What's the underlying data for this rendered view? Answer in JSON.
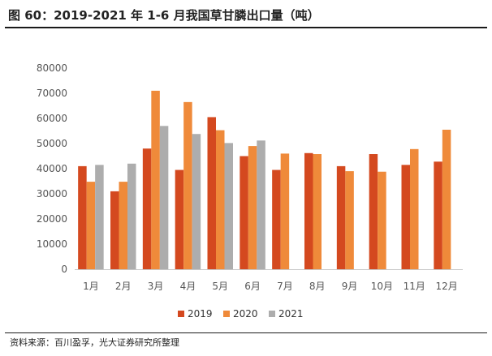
{
  "header": {
    "title": "图 60：2019-2021 年 1-6 月我国草甘膦出口量（吨）"
  },
  "footer": {
    "source": "资料来源：百川盈孚，光大证券研究所整理"
  },
  "chart_data": {
    "type": "bar",
    "title": "图 60：2019-2021 年 1-6 月我国草甘膦出口量（吨）",
    "xlabel": "",
    "ylabel": "",
    "ylim": [
      0,
      80000
    ],
    "yticks": [
      0,
      10000,
      20000,
      30000,
      40000,
      50000,
      60000,
      70000,
      80000
    ],
    "grid": false,
    "legend_position": "bottom",
    "categories": [
      "1月",
      "2月",
      "3月",
      "4月",
      "5月",
      "6月",
      "7月",
      "8月",
      "9月",
      "10月",
      "11月",
      "12月"
    ],
    "series": [
      {
        "name": "2019",
        "color": "#d4491f",
        "values": [
          41000,
          31000,
          48000,
          39500,
          60500,
          45000,
          39500,
          46200,
          41000,
          45800,
          41500,
          42800
        ]
      },
      {
        "name": "2020",
        "color": "#ef8a3a",
        "values": [
          34800,
          34800,
          71000,
          66500,
          55300,
          49000,
          46000,
          45800,
          39000,
          38800,
          47800,
          55500
        ]
      },
      {
        "name": "2021",
        "color": "#adadad",
        "values": [
          41500,
          42000,
          57000,
          53800,
          50200,
          51200,
          null,
          null,
          null,
          null,
          null,
          null
        ]
      }
    ]
  }
}
